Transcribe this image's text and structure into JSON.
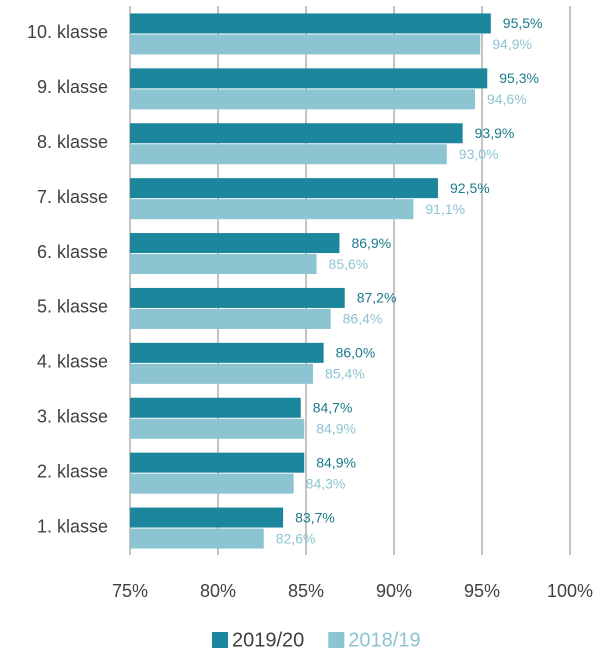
{
  "chart_data": {
    "type": "barh",
    "categories": [
      "10. klasse",
      "9. klasse",
      "8. klasse",
      "7. klasse",
      "6. klasse",
      "5. klasse",
      "4. klasse",
      "3. klasse",
      "2. klasse",
      "1. klasse"
    ],
    "series": [
      {
        "name": "2019/20",
        "color": "#1b869c",
        "label_color": "#1b7a8c",
        "values": [
          95.5,
          95.3,
          93.9,
          92.5,
          86.9,
          87.2,
          86.0,
          84.7,
          84.9,
          83.7
        ],
        "value_labels": [
          "95,5%",
          "95,3%",
          "93,9%",
          "92,5%",
          "86,9%",
          "87,2%",
          "86,0%",
          "84,7%",
          "84,9%",
          "83,7%"
        ]
      },
      {
        "name": "2018/19",
        "color": "#8cc4d2",
        "label_color": "#8cc4d2",
        "values": [
          94.9,
          94.6,
          93.0,
          91.1,
          85.6,
          86.4,
          85.4,
          84.9,
          84.3,
          82.6
        ],
        "value_labels": [
          "94,9%",
          "94,6%",
          "93,0%",
          "91,1%",
          "85,6%",
          "86,4%",
          "85,4%",
          "84,9%",
          "84,3%",
          "82,6%"
        ]
      }
    ],
    "xlim": [
      75,
      100
    ],
    "xticks": [
      {
        "value": 75,
        "label": "75%"
      },
      {
        "value": 80,
        "label": "80%"
      },
      {
        "value": 85,
        "label": "85%"
      },
      {
        "value": 90,
        "label": "90%"
      },
      {
        "value": 95,
        "label": "95%"
      },
      {
        "value": 100,
        "label": "100%"
      }
    ],
    "grid": true,
    "legend": "bottom"
  }
}
